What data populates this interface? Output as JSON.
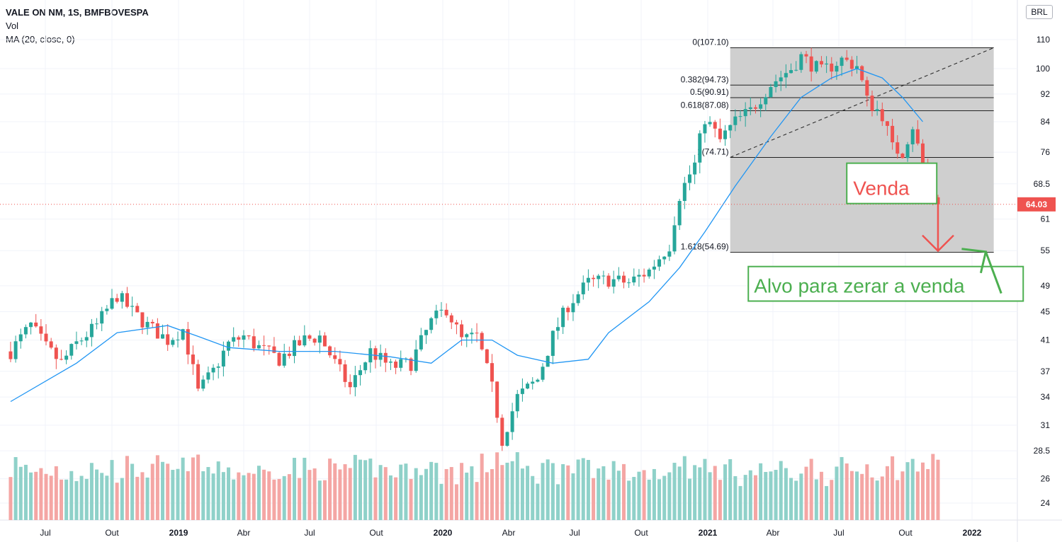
{
  "legend": {
    "title": "VALE ON NM, 1S, BMFBOVESPA",
    "vol": "Vol",
    "ma": "MA (20, close, 0)"
  },
  "currency": "BRL",
  "colors": {
    "up": "#26a69a",
    "down": "#ef5350",
    "vol_up": "#8fd1c9",
    "vol_down": "#f4a6a4",
    "ma": "#2196f3",
    "fib_box": "#cccccc",
    "price_line": "#ef5350",
    "venda": "#ef5350",
    "alvo": "#4caf50"
  },
  "chart_data": {
    "type": "candlestick",
    "title": "VALE ON NM, 1S, BMFBOVESPA",
    "y_axis": {
      "scale": "log",
      "ticks": [
        110.0,
        100.0,
        92.0,
        84.0,
        76.0,
        68.5,
        61.0,
        55.0,
        49.0,
        45.0,
        41.0,
        37.0,
        34.0,
        31.0,
        28.5,
        26.0,
        24.0
      ],
      "range": [
        22.9,
        118.0
      ]
    },
    "x_axis": {
      "ticks": [
        {
          "label": "Jul",
          "date": "2018-07-01",
          "bold": false
        },
        {
          "label": "Out",
          "date": "2018-10-01",
          "bold": false
        },
        {
          "label": "2019",
          "date": "2019-01-01",
          "bold": true
        },
        {
          "label": "Abr",
          "date": "2019-04-01",
          "bold": false
        },
        {
          "label": "Jul",
          "date": "2019-07-01",
          "bold": false
        },
        {
          "label": "Out",
          "date": "2019-10-01",
          "bold": false
        },
        {
          "label": "2020",
          "date": "2020-01-01",
          "bold": true
        },
        {
          "label": "Abr",
          "date": "2020-04-01",
          "bold": false
        },
        {
          "label": "Jul",
          "date": "2020-07-01",
          "bold": false
        },
        {
          "label": "Out",
          "date": "2020-10-01",
          "bold": false
        },
        {
          "label": "2021",
          "date": "2021-01-01",
          "bold": true
        },
        {
          "label": "Abr",
          "date": "2021-04-01",
          "bold": false
        },
        {
          "label": "Jul",
          "date": "2021-07-01",
          "bold": false
        },
        {
          "label": "Out",
          "date": "2021-10-01",
          "bold": false
        },
        {
          "label": "2022",
          "date": "2022-01-01",
          "bold": true
        }
      ]
    },
    "price_path": [
      [
        "2018-05-14",
        39.5
      ],
      [
        "2018-06-11",
        43.0
      ],
      [
        "2018-07-02",
        40.0
      ],
      [
        "2018-07-23",
        38.0
      ],
      [
        "2018-08-13",
        40.5
      ],
      [
        "2018-09-10",
        43.0
      ],
      [
        "2018-10-08",
        47.5
      ],
      [
        "2018-10-29",
        45.0
      ],
      [
        "2018-11-19",
        43.0
      ],
      [
        "2018-12-17",
        41.0
      ],
      [
        "2019-01-07",
        42.5
      ],
      [
        "2019-01-28",
        34.5
      ],
      [
        "2019-02-18",
        37.0
      ],
      [
        "2019-03-11",
        40.5
      ],
      [
        "2019-04-01",
        41.5
      ],
      [
        "2019-04-22",
        40.0
      ],
      [
        "2019-05-20",
        38.5
      ],
      [
        "2019-06-24",
        41.0
      ],
      [
        "2019-07-15",
        41.5
      ],
      [
        "2019-08-05",
        38.0
      ],
      [
        "2019-08-26",
        35.0
      ],
      [
        "2019-09-23",
        39.5
      ],
      [
        "2019-10-21",
        37.5
      ],
      [
        "2019-11-18",
        38.0
      ],
      [
        "2019-12-16",
        43.5
      ],
      [
        "2020-01-06",
        45.5
      ],
      [
        "2020-01-27",
        41.0
      ],
      [
        "2020-02-17",
        41.5
      ],
      [
        "2020-03-09",
        35.0
      ],
      [
        "2020-03-23",
        29.5
      ],
      [
        "2020-04-13",
        34.0
      ],
      [
        "2020-05-11",
        36.0
      ],
      [
        "2020-06-01",
        41.5
      ],
      [
        "2020-06-22",
        46.0
      ],
      [
        "2020-07-20",
        49.5
      ],
      [
        "2020-08-17",
        50.0
      ],
      [
        "2020-09-14",
        49.5
      ],
      [
        "2020-10-12",
        51.5
      ],
      [
        "2020-11-09",
        56.0
      ],
      [
        "2020-11-23",
        66.0
      ],
      [
        "2020-12-14",
        73.0
      ],
      [
        "2020-12-28",
        85.0
      ],
      [
        "2021-01-18",
        79.0
      ],
      [
        "2021-02-08",
        84.0
      ],
      [
        "2021-03-01",
        87.0
      ],
      [
        "2021-03-29",
        95.0
      ],
      [
        "2021-04-26",
        100.0
      ],
      [
        "2021-05-10",
        104.0
      ],
      [
        "2021-06-07",
        99.0
      ],
      [
        "2021-07-05",
        103.0
      ],
      [
        "2021-07-26",
        101.0
      ],
      [
        "2021-08-09",
        90.0
      ],
      [
        "2021-08-30",
        86.0
      ],
      [
        "2021-09-13",
        77.0
      ],
      [
        "2021-09-27",
        76.0
      ],
      [
        "2021-10-11",
        83.0
      ],
      [
        "2021-10-25",
        72.0
      ],
      [
        "2021-11-08",
        66.0
      ],
      [
        "2021-11-15",
        64.03
      ]
    ],
    "ma20_path": [
      [
        "2018-05-14",
        33.5
      ],
      [
        "2018-08-13",
        38.0
      ],
      [
        "2018-10-08",
        42.0
      ],
      [
        "2018-12-17",
        43.0
      ],
      [
        "2019-01-28",
        41.5
      ],
      [
        "2019-03-11",
        40.0
      ],
      [
        "2019-05-20",
        39.5
      ],
      [
        "2019-08-05",
        39.5
      ],
      [
        "2019-10-21",
        38.8
      ],
      [
        "2019-12-16",
        38.0
      ],
      [
        "2020-01-27",
        41.0
      ],
      [
        "2020-03-09",
        41.0
      ],
      [
        "2020-04-13",
        39.0
      ],
      [
        "2020-06-01",
        38.0
      ],
      [
        "2020-07-20",
        38.5
      ],
      [
        "2020-08-17",
        42.0
      ],
      [
        "2020-10-12",
        46.5
      ],
      [
        "2020-11-23",
        52.0
      ],
      [
        "2020-12-28",
        58.5
      ],
      [
        "2021-02-08",
        68.0
      ],
      [
        "2021-03-29",
        80.0
      ],
      [
        "2021-05-10",
        91.0
      ],
      [
        "2021-06-21",
        97.0
      ],
      [
        "2021-07-26",
        100.0
      ],
      [
        "2021-08-30",
        97.0
      ],
      [
        "2021-09-27",
        91.0
      ],
      [
        "2021-10-25",
        84.0
      ]
    ],
    "current_price": 64.03,
    "fibonacci": {
      "start_date": "2021-02-01",
      "end_date": "2022-01-31",
      "levels": [
        {
          "label": "0(107.10)",
          "value": 107.1
        },
        {
          "label": "0.382(94.73)",
          "value": 94.73
        },
        {
          "label": "0.5(90.91)",
          "value": 90.91
        },
        {
          "label": "0.618(87.08)",
          "value": 87.08
        },
        {
          "label": "1(74.71)",
          "value": 74.71
        },
        {
          "label": "1.618(54.69)",
          "value": 54.69
        }
      ]
    },
    "trend_line": {
      "from": [
        "2021-02-01",
        74.71
      ],
      "to": [
        "2022-01-31",
        107.1
      ]
    },
    "annotations": {
      "venda": "Venda",
      "alvo": "Alvo para zerar a venda"
    }
  }
}
